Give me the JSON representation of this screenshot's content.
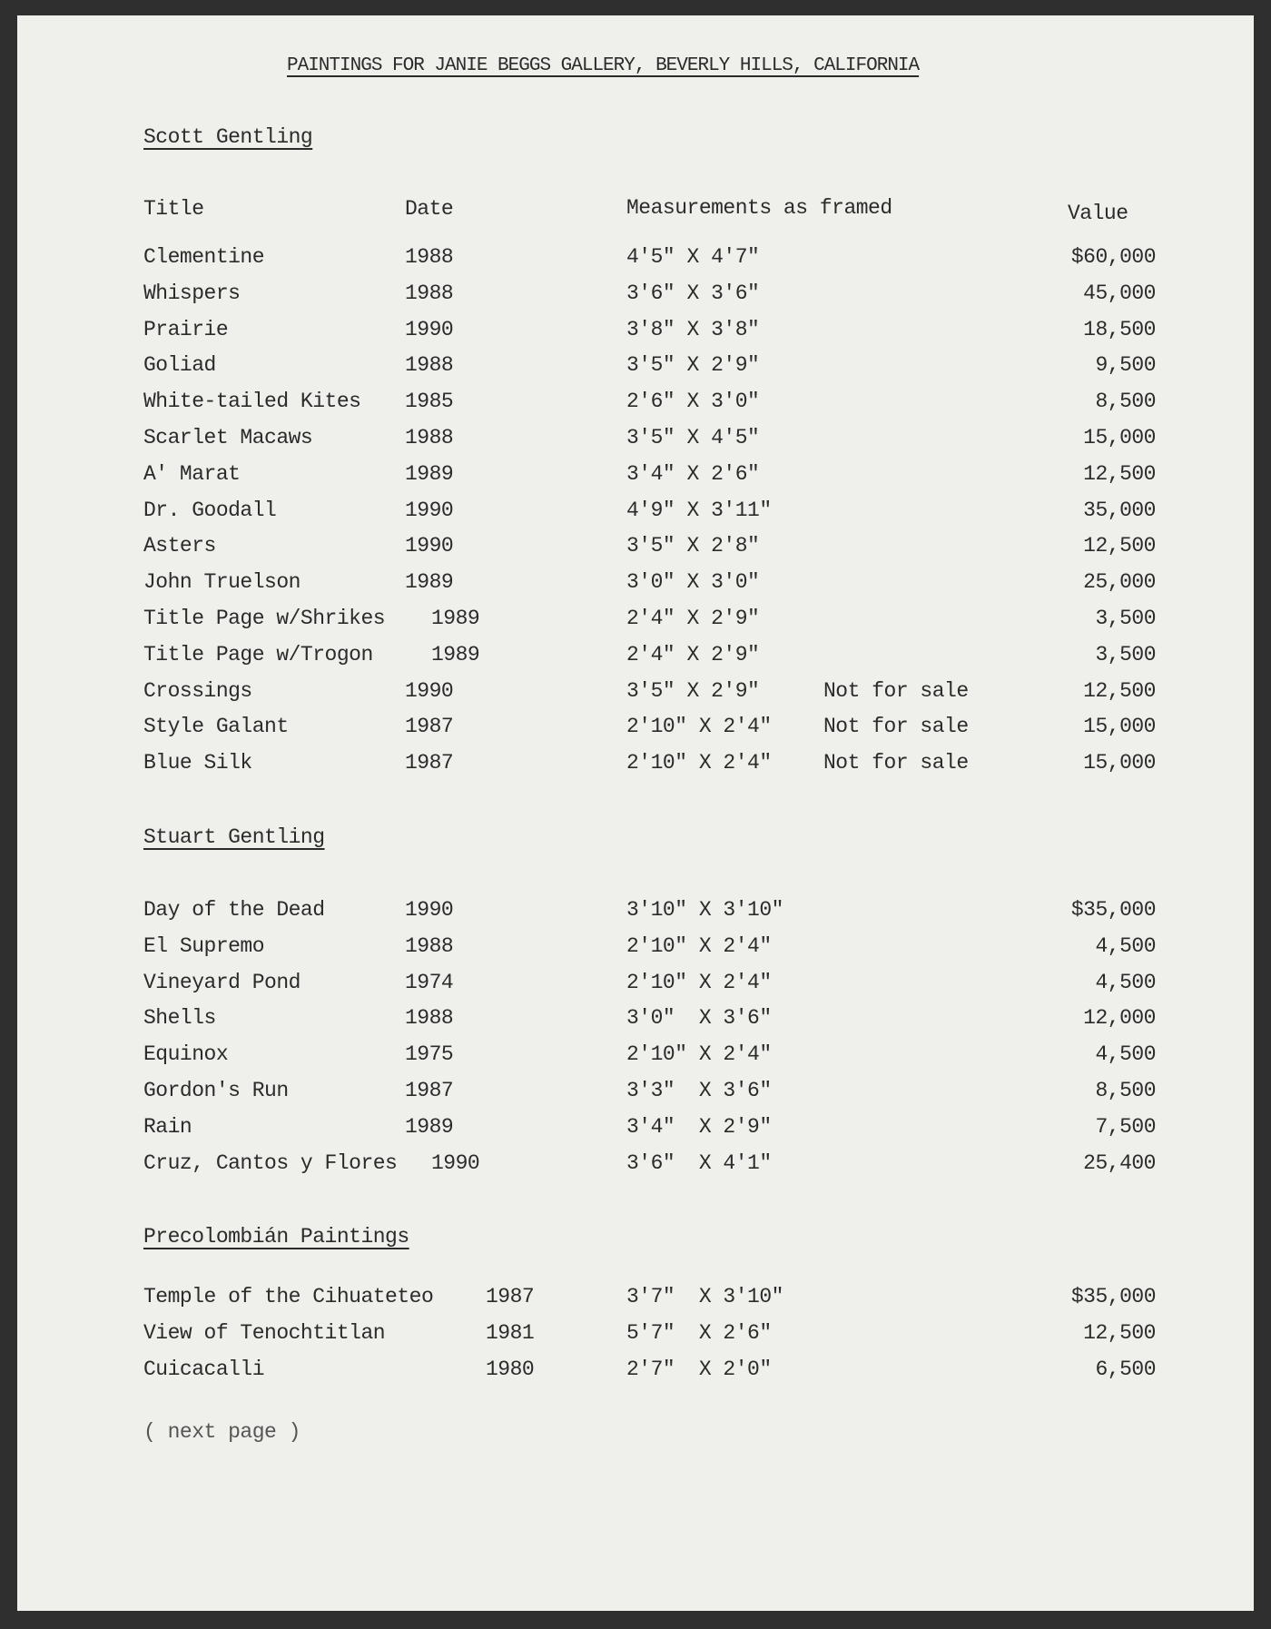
{
  "title": "PAINTINGS FOR JANIE BEGGS GALLERY, BEVERLY HILLS, CALIFORNIA",
  "columns": {
    "title": "Title",
    "date": "Date",
    "measurements": "Measurements as framed",
    "value": "Value"
  },
  "sections": [
    {
      "heading": "Scott Gentling",
      "rows": [
        {
          "title": "Clementine",
          "date": "1988",
          "measurements": "4'5\" X 4'7\"",
          "note": "",
          "value": "$60,000"
        },
        {
          "title": "Whispers",
          "date": "1988",
          "measurements": "3'6\" X 3'6\"",
          "note": "",
          "value": "45,000"
        },
        {
          "title": "Prairie",
          "date": "1990",
          "measurements": "3'8\" X 3'8\"",
          "note": "",
          "value": "18,500"
        },
        {
          "title": "Goliad",
          "date": "1988",
          "measurements": "3'5\" X 2'9\"",
          "note": "",
          "value": "9,500"
        },
        {
          "title": "White-tailed Kites",
          "date": "1985",
          "measurements": "2'6\" X 3'0\"",
          "note": "",
          "value": "8,500"
        },
        {
          "title": "Scarlet Macaws",
          "date": "1988",
          "measurements": "3'5\" X 4'5\"",
          "note": "",
          "value": "15,000"
        },
        {
          "title": "A' Marat",
          "date": "1989",
          "measurements": "3'4\" X 2'6\"",
          "note": "",
          "value": "12,500"
        },
        {
          "title": "Dr. Goodall",
          "date": "1990",
          "measurements": "4'9\" X 3'11\"",
          "note": "",
          "value": "35,000"
        },
        {
          "title": "Asters",
          "date": "1990",
          "measurements": "3'5\" X 2'8\"",
          "note": "",
          "value": "12,500"
        },
        {
          "title": "John Truelson",
          "date": "1989",
          "measurements": "3'0\" X 3'0\"",
          "note": "",
          "value": "25,000"
        },
        {
          "title": "Title Page w/Shrikes",
          "date": "1989",
          "measurements": "2'4\" X 2'9\"",
          "note": "",
          "value": "3,500"
        },
        {
          "title": "Title Page w/Trogon",
          "date": "1989",
          "measurements": "2'4\" X 2'9\"",
          "note": "",
          "value": "3,500"
        },
        {
          "title": "Crossings",
          "date": "1990",
          "measurements": "3'5\" X 2'9\"",
          "note": "Not for sale",
          "value": "12,500"
        },
        {
          "title": "Style Galant",
          "date": "1987",
          "measurements": "2'10\" X 2'4\"",
          "note": "Not for sale",
          "value": "15,000"
        },
        {
          "title": "Blue Silk",
          "date": "1987",
          "measurements": "2'10\" X 2'4\"",
          "note": "Not for sale",
          "value": "15,000"
        }
      ]
    },
    {
      "heading": "Stuart Gentling",
      "rows": [
        {
          "title": "Day of the Dead",
          "date": "1990",
          "measurements": "3'10\" X 3'10\"",
          "note": "",
          "value": "$35,000"
        },
        {
          "title": "El Supremo",
          "date": "1988",
          "measurements": "2'10\" X 2'4\"",
          "note": "",
          "value": "4,500"
        },
        {
          "title": "Vineyard Pond",
          "date": "1974",
          "measurements": "2'10\" X 2'4\"",
          "note": "",
          "value": "4,500"
        },
        {
          "title": "Shells",
          "date": "1988",
          "measurements": "3'0\"  X 3'6\"",
          "note": "",
          "value": "12,000"
        },
        {
          "title": "Equinox",
          "date": "1975",
          "measurements": "2'10\" X 2'4\"",
          "note": "",
          "value": "4,500"
        },
        {
          "title": "Gordon's Run",
          "date": "1987",
          "measurements": "3'3\"  X 3'6\"",
          "note": "",
          "value": "8,500"
        },
        {
          "title": "Rain",
          "date": "1989",
          "measurements": "3'4\"  X 2'9\"",
          "note": "",
          "value": "7,500"
        },
        {
          "title": "Cruz, Cantos y Flores",
          "date": "1990",
          "measurements": "3'6\"  X 4'1\"",
          "note": "",
          "value": "25,400"
        }
      ]
    },
    {
      "heading": "Precolombián Paintings",
      "rows": [
        {
          "title": "Temple of the Cihuateteo",
          "date": "1987",
          "measurements": "3'7\"  X 3'10\"",
          "note": "",
          "value": "$35,000"
        },
        {
          "title": "View of Tenochtitlan",
          "date": "1981",
          "measurements": "5'7\"  X 2'6\"",
          "note": "",
          "value": "12,500"
        },
        {
          "title": "Cuicacalli",
          "date": "1980",
          "measurements": "2'7\"  X 2'0\"",
          "note": "",
          "value": "6,500"
        }
      ]
    }
  ],
  "footer": "( next page )"
}
